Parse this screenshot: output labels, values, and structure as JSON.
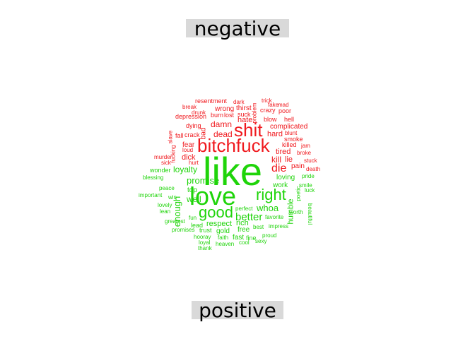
{
  "colors": {
    "negative": "#f0191e",
    "positive": "#1fd40a",
    "label_bg": "#d9d9d9"
  },
  "labels": {
    "negative": "negative",
    "positive": "positive"
  },
  "words": [
    {
      "text": "like",
      "sentiment": "positive"
    },
    {
      "text": "love",
      "sentiment": "positive"
    },
    {
      "text": "bitchfuck",
      "sentiment": "negative"
    },
    {
      "text": "shit",
      "sentiment": "negative"
    },
    {
      "text": "right",
      "sentiment": "positive"
    },
    {
      "text": "good",
      "sentiment": "positive"
    },
    {
      "text": "die",
      "sentiment": "negative"
    },
    {
      "text": "better",
      "sentiment": "positive"
    },
    {
      "text": "whoa",
      "sentiment": "positive"
    },
    {
      "text": "kill",
      "sentiment": "negative"
    },
    {
      "text": "lie",
      "sentiment": "negative"
    },
    {
      "text": "promise",
      "sentiment": "positive"
    },
    {
      "text": "loyalty",
      "sentiment": "positive"
    },
    {
      "text": "dead",
      "sentiment": "negative"
    },
    {
      "text": "damn",
      "sentiment": "negative"
    },
    {
      "text": "hate",
      "sentiment": "negative"
    },
    {
      "text": "enough",
      "sentiment": "positive"
    },
    {
      "text": "well",
      "sentiment": "positive"
    },
    {
      "text": "top",
      "sentiment": "positive"
    },
    {
      "text": "respect",
      "sentiment": "positive"
    },
    {
      "text": "rich",
      "sentiment": "positive"
    },
    {
      "text": "tired",
      "sentiment": "negative"
    },
    {
      "text": "hard",
      "sentiment": "negative"
    },
    {
      "text": "dick",
      "sentiment": "negative"
    },
    {
      "text": "fear",
      "sentiment": "negative"
    },
    {
      "text": "complicated",
      "sentiment": "negative"
    },
    {
      "text": "loving",
      "sentiment": "positive"
    },
    {
      "text": "work",
      "sentiment": "positive"
    },
    {
      "text": "humble",
      "sentiment": "positive"
    },
    {
      "text": "pain",
      "sentiment": "negative"
    },
    {
      "text": "free",
      "sentiment": "positive"
    },
    {
      "text": "fast",
      "sentiment": "positive"
    },
    {
      "text": "fine",
      "sentiment": "positive"
    },
    {
      "text": "gold",
      "sentiment": "positive"
    },
    {
      "text": "lead",
      "sentiment": "positive"
    },
    {
      "text": "trust",
      "sentiment": "positive"
    },
    {
      "text": "wrong",
      "sentiment": "negative"
    },
    {
      "text": "thirst",
      "sentiment": "negative"
    },
    {
      "text": "suck",
      "sentiment": "negative"
    },
    {
      "text": "lost",
      "sentiment": "negative"
    },
    {
      "text": "burn",
      "sentiment": "negative"
    },
    {
      "text": "blow",
      "sentiment": "negative"
    },
    {
      "text": "hell",
      "sentiment": "negative"
    },
    {
      "text": "crazy",
      "sentiment": "negative"
    },
    {
      "text": "poor",
      "sentiment": "negative"
    },
    {
      "text": "fake",
      "sentiment": "negative"
    },
    {
      "text": "mad",
      "sentiment": "negative"
    },
    {
      "text": "trick",
      "sentiment": "negative"
    },
    {
      "text": "dark",
      "sentiment": "negative"
    },
    {
      "text": "resentment",
      "sentiment": "negative"
    },
    {
      "text": "break",
      "sentiment": "negative"
    },
    {
      "text": "drunk",
      "sentiment": "negative"
    },
    {
      "text": "depression",
      "sentiment": "negative"
    },
    {
      "text": "dying",
      "sentiment": "negative"
    },
    {
      "text": "bad",
      "sentiment": "negative"
    },
    {
      "text": "fall",
      "sentiment": "negative"
    },
    {
      "text": "crack",
      "sentiment": "negative"
    },
    {
      "text": "slave",
      "sentiment": "negative"
    },
    {
      "text": "fucking",
      "sentiment": "negative"
    },
    {
      "text": "loud",
      "sentiment": "negative"
    },
    {
      "text": "murder",
      "sentiment": "negative"
    },
    {
      "text": "sick",
      "sentiment": "negative"
    },
    {
      "text": "hurt",
      "sentiment": "negative"
    },
    {
      "text": "problem",
      "sentiment": "negative"
    },
    {
      "text": "blunt",
      "sentiment": "negative"
    },
    {
      "text": "smoke",
      "sentiment": "negative"
    },
    {
      "text": "killed",
      "sentiment": "negative"
    },
    {
      "text": "jam",
      "sentiment": "negative"
    },
    {
      "text": "broke",
      "sentiment": "negative"
    },
    {
      "text": "stuck",
      "sentiment": "negative"
    },
    {
      "text": "death",
      "sentiment": "negative"
    },
    {
      "text": "wonder",
      "sentiment": "positive"
    },
    {
      "text": "blessing",
      "sentiment": "positive"
    },
    {
      "text": "peace",
      "sentiment": "positive"
    },
    {
      "text": "important",
      "sentiment": "positive"
    },
    {
      "text": "win",
      "sentiment": "positive"
    },
    {
      "text": "lovely",
      "sentiment": "positive"
    },
    {
      "text": "lean",
      "sentiment": "positive"
    },
    {
      "text": "greatest",
      "sentiment": "positive"
    },
    {
      "text": "fun",
      "sentiment": "positive"
    },
    {
      "text": "perfect",
      "sentiment": "positive"
    },
    {
      "text": "favorite",
      "sentiment": "positive"
    },
    {
      "text": "promises",
      "sentiment": "positive"
    },
    {
      "text": "hooray",
      "sentiment": "positive"
    },
    {
      "text": "loyal",
      "sentiment": "positive"
    },
    {
      "text": "thank",
      "sentiment": "positive"
    },
    {
      "text": "faith",
      "sentiment": "positive"
    },
    {
      "text": "heaven",
      "sentiment": "positive"
    },
    {
      "text": "cool",
      "sentiment": "positive"
    },
    {
      "text": "sexy",
      "sentiment": "positive"
    },
    {
      "text": "proud",
      "sentiment": "positive"
    },
    {
      "text": "best",
      "sentiment": "positive"
    },
    {
      "text": "impress",
      "sentiment": "positive"
    },
    {
      "text": "poetic",
      "sentiment": "positive"
    },
    {
      "text": "smile",
      "sentiment": "positive"
    },
    {
      "text": "luck",
      "sentiment": "positive"
    },
    {
      "text": "pride",
      "sentiment": "positive"
    },
    {
      "text": "worth",
      "sentiment": "positive"
    },
    {
      "text": "beautiful",
      "sentiment": "positive"
    }
  ]
}
